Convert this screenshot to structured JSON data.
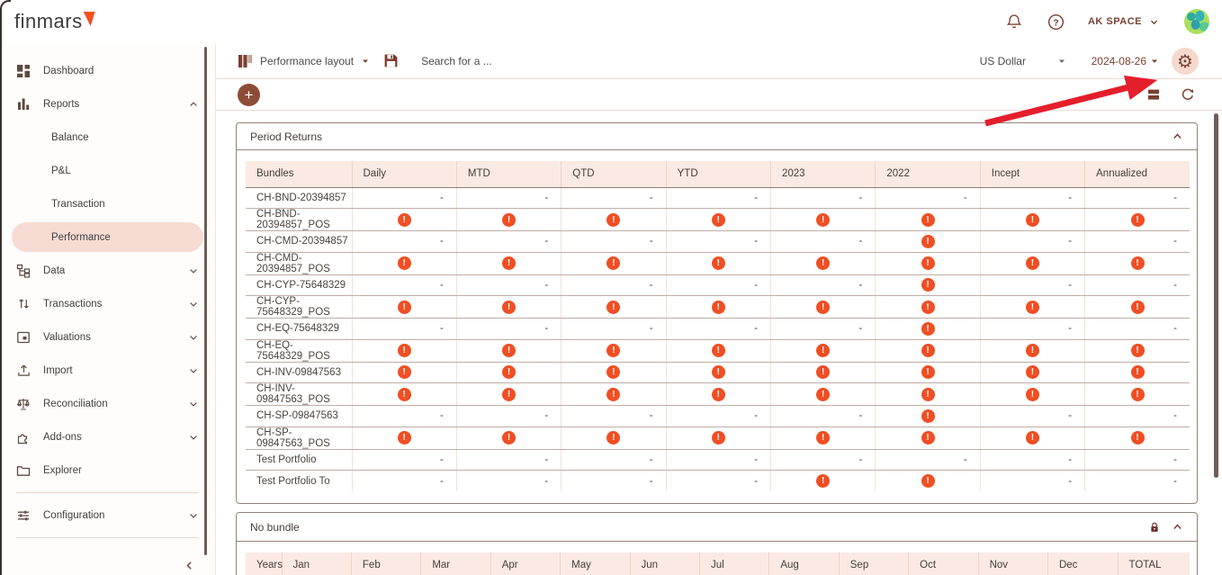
{
  "brand": {
    "name": "finmars"
  },
  "topbar": {
    "space_label": "AK SPACE"
  },
  "sidebar": {
    "dashboard": "Dashboard",
    "reports": "Reports",
    "balance": "Balance",
    "pnl": "P&L",
    "transaction": "Transaction",
    "performance": "Performance",
    "data": "Data",
    "transactions": "Transactions",
    "valuations": "Valuations",
    "import": "Import",
    "reconciliation": "Reconciliation",
    "addons": "Add-ons",
    "explorer": "Explorer",
    "configuration": "Configuration"
  },
  "toolbar": {
    "layout_name": "Performance layout",
    "search_placeholder": "Search for a ...",
    "currency": "US Dollar",
    "date": "2024-08-26"
  },
  "icons": {
    "warning": "!",
    "plus": "+",
    "help": "?"
  },
  "colors": {
    "accent": "#7b4031",
    "warning": "#f04e23",
    "highlight_pill": "#f7dcd3",
    "table_header_bg": "#fbeae3",
    "annotation_arrow": "#e51e2c"
  },
  "period_returns": {
    "title": "Period Returns",
    "columns": [
      "Bundles",
      "Daily",
      "MTD",
      "QTD",
      "YTD",
      "2023",
      "2022",
      "Incept",
      "Annualized"
    ],
    "rows": [
      {
        "name": "CH-BND-20394857",
        "values": [
          "-",
          "-",
          "-",
          "-",
          "-",
          "-",
          "-",
          "-"
        ]
      },
      {
        "name": "CH-BND-20394857_POS",
        "values": [
          "!",
          "!",
          "!",
          "!",
          "!",
          "!",
          "!",
          "!"
        ]
      },
      {
        "name": "CH-CMD-20394857",
        "values": [
          "-",
          "-",
          "-",
          "-",
          "-",
          "!",
          "-",
          "-"
        ]
      },
      {
        "name": "CH-CMD-20394857_POS",
        "values": [
          "!",
          "!",
          "!",
          "!",
          "!",
          "!",
          "!",
          "!"
        ]
      },
      {
        "name": "CH-CYP-75648329",
        "values": [
          "-",
          "-",
          "-",
          "-",
          "-",
          "!",
          "-",
          "-"
        ]
      },
      {
        "name": "CH-CYP-75648329_POS",
        "values": [
          "!",
          "!",
          "!",
          "!",
          "!",
          "!",
          "!",
          "!"
        ]
      },
      {
        "name": "CH-EQ-75648329",
        "values": [
          "-",
          "-",
          "-",
          "-",
          "-",
          "!",
          "-",
          "-"
        ]
      },
      {
        "name": "CH-EQ-75648329_POS",
        "values": [
          "!",
          "!",
          "!",
          "!",
          "!",
          "!",
          "!",
          "!"
        ]
      },
      {
        "name": "CH-INV-09847563",
        "values": [
          "!",
          "!",
          "!",
          "!",
          "!",
          "!",
          "!",
          "!"
        ]
      },
      {
        "name": "CH-INV-09847563_POS",
        "values": [
          "!",
          "!",
          "!",
          "!",
          "!",
          "!",
          "!",
          "!"
        ]
      },
      {
        "name": "CH-SP-09847563",
        "values": [
          "-",
          "-",
          "-",
          "-",
          "-",
          "!",
          "-",
          "-"
        ]
      },
      {
        "name": "CH-SP-09847563_POS",
        "values": [
          "!",
          "!",
          "!",
          "!",
          "!",
          "!",
          "!",
          "!"
        ]
      },
      {
        "name": "Test Portfolio",
        "values": [
          "-",
          "-",
          "-",
          "-",
          "-",
          "-",
          "-",
          "-"
        ]
      },
      {
        "name": "Test Portfolio To",
        "values": [
          "-",
          "-",
          "-",
          "-",
          "!",
          "!",
          "-",
          "-"
        ]
      }
    ]
  },
  "no_bundle": {
    "title": "No bundle",
    "columns": [
      "Years",
      "Jan",
      "Feb",
      "Mar",
      "Apr",
      "May",
      "Jun",
      "Jul",
      "Aug",
      "Sep",
      "Oct",
      "Nov",
      "Dec",
      "TOTAL"
    ]
  }
}
